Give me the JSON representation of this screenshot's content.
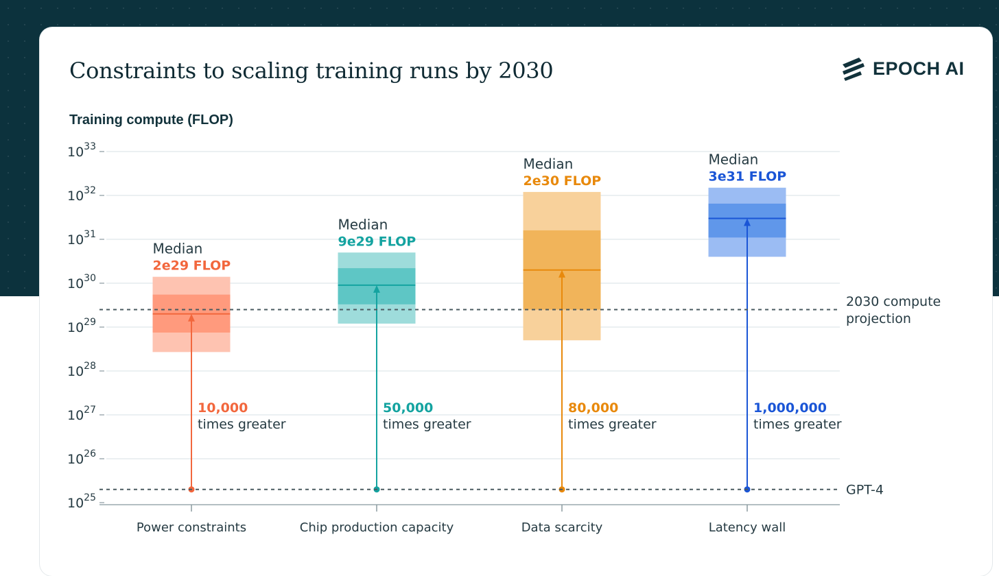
{
  "header": {
    "title": "Constraints to scaling training runs by 2030",
    "logo_text": "EPOCH AI"
  },
  "colors": {
    "background_dark": "#0c323d",
    "text": "#253a42",
    "grid": "#dfe8ea",
    "reference_line": "#4a5a60"
  },
  "chart_data": {
    "type": "range-bar",
    "ylabel": "Training compute (FLOP)",
    "y_scale": "log",
    "ylim": [
      1e+25,
      1e+33
    ],
    "y_tick_base": "10",
    "y_ticks": [
      {
        "value": 1e+33,
        "exp": "33"
      },
      {
        "value": 1e+32,
        "exp": "32"
      },
      {
        "value": 1e+31,
        "exp": "31"
      },
      {
        "value": 1e+30,
        "exp": "30"
      },
      {
        "value": 1e+29,
        "exp": "29"
      },
      {
        "value": 1e+28,
        "exp": "28"
      },
      {
        "value": 1e+27,
        "exp": "27"
      },
      {
        "value": 1e+26,
        "exp": "26"
      },
      {
        "value": 1e+25,
        "exp": "25"
      }
    ],
    "reference_lines": [
      {
        "label": "2030 compute projection",
        "label_lines": [
          "2030 compute",
          "projection"
        ],
        "value": 2.5e+29
      },
      {
        "label": "GPT-4",
        "label_lines": [
          "GPT-4"
        ],
        "value": 2e+25
      }
    ],
    "median_label": "Median",
    "times_label": "times greater",
    "categories": [
      {
        "name": "Power constraints",
        "color": "#f2673d",
        "outer_fill": "#fec3b1",
        "inner_fill": "#ff9a7d",
        "median": 2e+29,
        "median_text": "2e29 FLOP",
        "range_outer": [
          2.7e+28,
          1.4e+30
        ],
        "range_inner": [
          7.5e+28,
          5.5e+29
        ],
        "multiplier": "10,000"
      },
      {
        "name": "Chip production capacity",
        "color": "#14a3a0",
        "outer_fill": "#9edcdb",
        "inner_fill": "#5ec6c5",
        "median": 9e+29,
        "median_text": "9e29 FLOP",
        "range_outer": [
          1.2e+29,
          5e+30
        ],
        "range_inner": [
          3.3e+29,
          2.2e+30
        ],
        "multiplier": "50,000"
      },
      {
        "name": "Data scarcity",
        "color": "#e8890c",
        "outer_fill": "#f8d19b",
        "inner_fill": "#f1b45a",
        "median": 2e+30,
        "median_text": "2e30 FLOP",
        "range_outer": [
          5e+28,
          1.2e+32
        ],
        "range_inner": [
          2.5e+29,
          1.6e+31
        ],
        "multiplier": "80,000"
      },
      {
        "name": "Latency wall",
        "color": "#1a55d6",
        "outer_fill": "#9bbcf3",
        "inner_fill": "#6097ea",
        "median": 3e+31,
        "median_text": "3e31 FLOP",
        "range_outer": [
          4e+30,
          1.5e+32
        ],
        "range_inner": [
          1.1e+31,
          6.5e+31
        ],
        "multiplier": "1,000,000"
      }
    ]
  }
}
